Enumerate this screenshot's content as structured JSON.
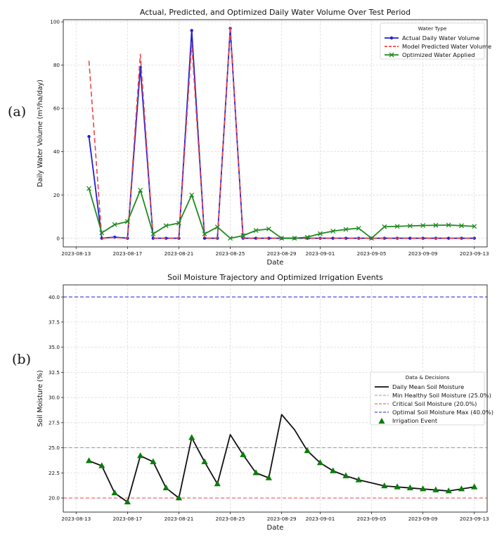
{
  "panel_labels": [
    "(a)",
    "(b)"
  ],
  "colors": {
    "actual": "#1f1fd6",
    "predicted": "#ef4444",
    "optimized": "#1f8a1f",
    "moisture": "#111111",
    "min_healthy": "#999999",
    "critical": "#ef4444",
    "optimal_max": "#1f1fd6",
    "irrigation": "#0a7d0a"
  },
  "chart_data": [
    {
      "type": "line",
      "title": "Actual, Predicted, and Optimized Daily Water Volume Over Test Period",
      "xlabel": "Date",
      "ylabel": "Daily Water Volume (m³/ha/day)",
      "ylim": [
        -4,
        101
      ],
      "yticks": [
        0,
        20,
        40,
        60,
        80,
        100
      ],
      "xlim": [
        "2023-08-12",
        "2023-09-14"
      ],
      "xticks": [
        "2023-08-13",
        "2023-08-17",
        "2023-08-21",
        "2023-08-25",
        "2023-08-29",
        "2023-09-01",
        "2023-09-05",
        "2023-09-09",
        "2023-09-13"
      ],
      "grid": true,
      "legend": {
        "title": "Water Type",
        "position": "top-right"
      },
      "x": [
        "2023-08-14",
        "2023-08-15",
        "2023-08-16",
        "2023-08-17",
        "2023-08-18",
        "2023-08-19",
        "2023-08-20",
        "2023-08-21",
        "2023-08-22",
        "2023-08-23",
        "2023-08-24",
        "2023-08-25",
        "2023-08-26",
        "2023-08-27",
        "2023-08-28",
        "2023-08-29",
        "2023-08-30",
        "2023-08-31",
        "2023-09-01",
        "2023-09-02",
        "2023-09-03",
        "2023-09-04",
        "2023-09-05",
        "2023-09-06",
        "2023-09-07",
        "2023-09-08",
        "2023-09-09",
        "2023-09-10",
        "2023-09-11",
        "2023-09-12",
        "2023-09-13"
      ],
      "series": [
        {
          "name": "Actual Daily Water Volume",
          "key": "actual",
          "style": "solid",
          "marker": "dot",
          "values": [
            47,
            0,
            0.5,
            0,
            79,
            0,
            0,
            0,
            96,
            0,
            0,
            97,
            0,
            0,
            0,
            0,
            0,
            0,
            0,
            0,
            0,
            0,
            0,
            0,
            0,
            0,
            0,
            0,
            0,
            0,
            0
          ]
        },
        {
          "name": "Model Predicted Water Volume",
          "key": "predicted",
          "style": "dashed",
          "marker": "none",
          "values": [
            82,
            0,
            0.3,
            0,
            85,
            0,
            0,
            0,
            90,
            0,
            0,
            98,
            0,
            0,
            0,
            0,
            0,
            0,
            0,
            0,
            0,
            0,
            0,
            0,
            0,
            0,
            0,
            0,
            0,
            0,
            0
          ]
        },
        {
          "name": "Optimized Water Applied",
          "key": "optimized",
          "style": "solid",
          "marker": "x",
          "values": [
            23,
            2.5,
            6.3,
            7.7,
            22.2,
            2,
            5.8,
            7,
            20,
            2,
            5.2,
            0,
            1.2,
            3.6,
            4.3,
            0,
            0,
            0.5,
            2.1,
            3.3,
            4.1,
            4.6,
            0,
            5.3,
            5.5,
            5.7,
            5.9,
            6,
            6.1,
            5.8,
            5.5
          ]
        }
      ]
    },
    {
      "type": "line",
      "title": "Soil Moisture Trajectory and Optimized Irrigation Events",
      "xlabel": "Date",
      "ylabel": "Soil Moisture (%)",
      "ylim": [
        18.6,
        41.2
      ],
      "yticks": [
        "20.0",
        "22.5",
        "25.0",
        "27.5",
        "30.0",
        "32.5",
        "35.0",
        "37.5",
        "40.0"
      ],
      "xlim": [
        "2023-08-12",
        "2023-09-14"
      ],
      "xticks": [
        "2023-08-13",
        "2023-08-17",
        "2023-08-21",
        "2023-08-25",
        "2023-08-29",
        "2023-09-01",
        "2023-09-05",
        "2023-09-09",
        "2023-09-13"
      ],
      "grid": true,
      "legend": {
        "title": "Data & Decisions",
        "position": "center-right"
      },
      "x": [
        "2023-08-14",
        "2023-08-15",
        "2023-08-16",
        "2023-08-17",
        "2023-08-18",
        "2023-08-19",
        "2023-08-20",
        "2023-08-21",
        "2023-08-22",
        "2023-08-23",
        "2023-08-24",
        "2023-08-25",
        "2023-08-26",
        "2023-08-27",
        "2023-08-28",
        "2023-08-29",
        "2023-08-30",
        "2023-08-31",
        "2023-09-01",
        "2023-09-02",
        "2023-09-03",
        "2023-09-04",
        "2023-09-05",
        "2023-09-06",
        "2023-09-07",
        "2023-09-08",
        "2023-09-09",
        "2023-09-10",
        "2023-09-11",
        "2023-09-12",
        "2023-09-13"
      ],
      "series": [
        {
          "name": "Daily Mean Soil Moisture",
          "key": "moisture",
          "style": "solid",
          "marker": "none",
          "values": [
            23.7,
            23.2,
            20.5,
            19.6,
            24.2,
            23.6,
            21,
            20,
            26,
            23.6,
            21.4,
            26.3,
            24.3,
            22.5,
            22,
            28.3,
            26.8,
            24.7,
            23.5,
            22.7,
            22.2,
            21.8,
            21.5,
            21.2,
            21.1,
            21,
            20.9,
            20.8,
            20.7,
            20.9,
            21.1
          ]
        }
      ],
      "reference_lines": [
        {
          "name": "Min Healthy Soil Moisture (25.0%)",
          "key": "min_healthy",
          "value": 25.0,
          "style": "dashed"
        },
        {
          "name": "Critical Soil Moisture (20.0%)",
          "key": "critical",
          "value": 20.0,
          "style": "dashed"
        },
        {
          "name": "Optimal Soil Moisture Max (40.0%)",
          "key": "optimal_max",
          "value": 40.0,
          "style": "dashed"
        }
      ],
      "events": {
        "name": "Irrigation Event",
        "key": "irrigation",
        "marker": "triangle",
        "x": [
          "2023-08-14",
          "2023-08-15",
          "2023-08-16",
          "2023-08-17",
          "2023-08-18",
          "2023-08-19",
          "2023-08-20",
          "2023-08-21",
          "2023-08-22",
          "2023-08-23",
          "2023-08-24",
          "2023-08-26",
          "2023-08-27",
          "2023-08-28",
          "2023-08-31",
          "2023-09-01",
          "2023-09-02",
          "2023-09-03",
          "2023-09-04",
          "2023-09-06",
          "2023-09-07",
          "2023-09-08",
          "2023-09-09",
          "2023-09-10",
          "2023-09-11",
          "2023-09-12",
          "2023-09-13"
        ],
        "values": [
          23.7,
          23.2,
          20.5,
          19.6,
          24.2,
          23.6,
          21,
          20,
          26,
          23.6,
          21.4,
          24.3,
          22.5,
          22,
          24.7,
          23.5,
          22.7,
          22.2,
          21.8,
          21.2,
          21.1,
          21,
          20.9,
          20.8,
          20.7,
          20.9,
          21.1
        ]
      }
    }
  ]
}
